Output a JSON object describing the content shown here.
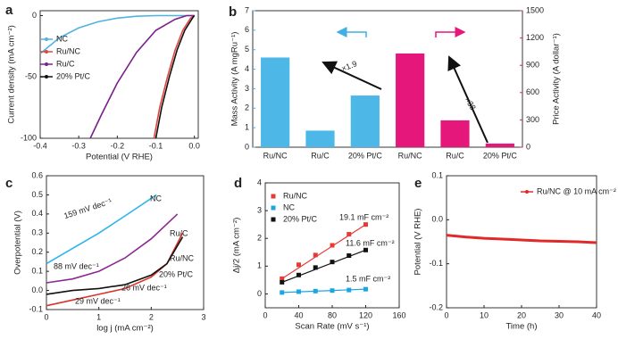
{
  "chart_data": [
    {
      "type": "line",
      "panel_label": "a",
      "xlabel": "Potential (V RHE)",
      "ylabel": "Current density (mA cm⁻²)",
      "xlim": [
        -0.4,
        0.01
      ],
      "ylim": [
        -100,
        4
      ],
      "xticks": [
        -0.4,
        -0.3,
        -0.2,
        -0.1,
        {
          "value": 0,
          "label": "0.0"
        }
      ],
      "yticks": [
        -100,
        -50,
        0
      ],
      "legend": "center left",
      "series": [
        {
          "name": "NC",
          "color": "#4fb3e0",
          "x": [
            -0.4,
            -0.35,
            -0.3,
            -0.25,
            -0.2,
            -0.15,
            -0.1,
            0
          ],
          "values": [
            -31,
            -18,
            -10,
            -5,
            -2,
            -0.5,
            0,
            0
          ]
        },
        {
          "name": "Ru/NC",
          "color": "#e0463f",
          "x": [
            -0.105,
            -0.09,
            -0.07,
            -0.05,
            -0.03,
            -0.01,
            0
          ],
          "values": [
            -100,
            -75,
            -50,
            -28,
            -12,
            -2,
            0
          ]
        },
        {
          "name": "Ru/C",
          "color": "#7a1f8c",
          "x": [
            -0.27,
            -0.24,
            -0.2,
            -0.15,
            -0.1,
            -0.05,
            -0.02,
            0
          ],
          "values": [
            -100,
            -80,
            -55,
            -30,
            -12,
            -3,
            0,
            0
          ]
        },
        {
          "name": "20% Pt/C",
          "color": "#111111",
          "x": [
            -0.1,
            -0.085,
            -0.065,
            -0.045,
            -0.025,
            -0.005,
            0
          ],
          "values": [
            -100,
            -75,
            -50,
            -28,
            -12,
            -2,
            0
          ]
        }
      ]
    },
    {
      "type": "bar",
      "panel_label": "b",
      "ylabel": "Mass Activity (A mgRu⁻¹)",
      "y2label": "Price Activity (A dollar⁻¹)",
      "categories": [
        "Ru/NC",
        "Ru/C",
        "20% Pt/C",
        "Ru/NC",
        "Ru/C",
        "20% Pt/C"
      ],
      "ylim": [
        0,
        7
      ],
      "yticks": [
        0,
        1,
        2,
        3,
        4,
        5,
        6,
        7
      ],
      "y2lim": [
        0,
        1500
      ],
      "y2ticks": [
        0,
        300,
        600,
        900,
        1200,
        1500
      ],
      "ycolor": "#3fb0e4",
      "y2color": "#e6177a",
      "annotations": [
        {
          "text": "×1.9",
          "color": "#222222"
        },
        {
          "text": "×38",
          "color": "#222222"
        }
      ],
      "series": [
        {
          "color": "#4db8e8",
          "values": [
            4.6,
            0.85,
            2.65,
            null,
            null,
            null
          ]
        },
        {
          "color": "#e6177a",
          "axis": "y2",
          "values": [
            null,
            null,
            null,
            1030,
            295,
            40
          ]
        }
      ]
    },
    {
      "type": "line",
      "panel_label": "c",
      "xlabel": "log j (mA cm⁻²)",
      "ylabel": "Overpotential (V)",
      "xlim": [
        0,
        3
      ],
      "ylim": [
        -0.1,
        0.6
      ],
      "xticks": [
        0,
        1,
        2,
        3
      ],
      "yticks": [
        -0.1,
        {
          "value": 0,
          "label": "0.0"
        },
        0.1,
        0.2,
        0.3,
        0.4,
        0.5,
        0.6
      ],
      "legend": "inline",
      "annotations": [
        {
          "text": "159 mV dec⁻¹",
          "color": "#2bb5ec"
        },
        {
          "text": "88 mV dec⁻¹",
          "color": "#8b2a91"
        },
        {
          "text": "29 mV dec⁻¹",
          "color": "#d9342b"
        },
        {
          "text": "26 mV dec⁻¹",
          "color": "#111111"
        }
      ],
      "series": [
        {
          "name": "NC",
          "color": "#2bb5ec",
          "x": [
            0,
            0.5,
            1,
            1.5,
            2.1
          ],
          "values": [
            0.14,
            0.22,
            0.3,
            0.39,
            0.5
          ]
        },
        {
          "name": "Ru/C",
          "color": "#8b2a91",
          "x": [
            0,
            0.5,
            1,
            1.5,
            2,
            2.5
          ],
          "values": [
            0.04,
            0.06,
            0.1,
            0.17,
            0.27,
            0.4
          ]
        },
        {
          "name": "Ru/NC",
          "color": "#d9342b",
          "x": [
            0,
            0.5,
            1,
            1.5,
            2,
            2.3,
            2.6
          ],
          "values": [
            -0.08,
            -0.05,
            -0.02,
            0.01,
            0.07,
            0.14,
            0.3
          ]
        },
        {
          "name": "20% Pt/C",
          "color": "#111111",
          "x": [
            0,
            0.5,
            1,
            1.5,
            2,
            2.3,
            2.6
          ],
          "values": [
            -0.02,
            0,
            0.01,
            0.03,
            0.08,
            0.14,
            0.28
          ]
        }
      ]
    },
    {
      "type": "scatter",
      "panel_label": "d",
      "xlabel": "Scan Rate (mV s⁻¹)",
      "ylabel": "Δj/2 (mA cm⁻²)",
      "xlim": [
        0,
        160
      ],
      "ylim": [
        -0.5,
        4
      ],
      "xticks": [
        0,
        40,
        80,
        120,
        160
      ],
      "yticks": [
        0,
        1,
        2,
        3,
        4
      ],
      "legend": "upper left",
      "x": [
        20,
        40,
        60,
        80,
        100,
        120
      ],
      "annotations": [
        {
          "text": "19.1 mF cm⁻²",
          "color": "#222222"
        },
        {
          "text": "11.6 mF cm⁻²",
          "color": "#222222"
        },
        {
          "text": "1.5 mF cm⁻²",
          "color": "#222222"
        }
      ],
      "series": [
        {
          "name": "Ru/NC",
          "color": "#e83a35",
          "values": [
            0.55,
            1.05,
            1.4,
            1.75,
            2.15,
            2.5
          ]
        },
        {
          "name": "NC",
          "color": "#1ba6e0",
          "values": [
            0.05,
            0.08,
            0.1,
            0.12,
            0.14,
            0.17
          ]
        },
        {
          "name": "20% Pt/C",
          "color": "#111111",
          "values": [
            0.42,
            0.68,
            0.95,
            1.15,
            1.38,
            1.58
          ]
        }
      ]
    },
    {
      "type": "line",
      "panel_label": "e",
      "xlabel": "Time (h)",
      "ylabel": "Potential (V RHE)",
      "xlim": [
        0,
        40
      ],
      "ylim": [
        -0.2,
        0.1
      ],
      "xticks": [
        0,
        10,
        20,
        30,
        40
      ],
      "yticks": [
        -0.2,
        -0.1,
        {
          "value": 0,
          "label": "0.0"
        },
        0.1
      ],
      "legend": "upper right",
      "series": [
        {
          "name": "Ru/NC @ 10 mA cm⁻²",
          "color": "#e02a2a",
          "x": [
            0,
            5,
            10,
            15,
            20,
            25,
            30,
            35,
            40
          ],
          "values": [
            -0.035,
            -0.039,
            -0.042,
            -0.044,
            -0.046,
            -0.048,
            -0.049,
            -0.05,
            -0.052
          ]
        }
      ]
    }
  ]
}
